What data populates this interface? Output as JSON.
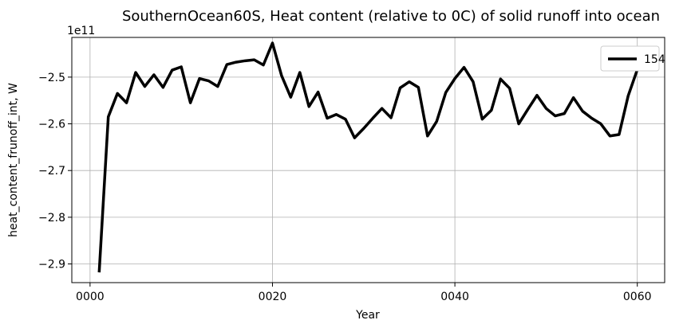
{
  "chart_data": {
    "type": "line",
    "title": "SouthernOcean60S, Heat content (relative to 0C) of solid runoff into ocean",
    "xlabel": "Year",
    "ylabel": "heat_content_frunoff_int, W",
    "y_offset_label": "1e11",
    "xlim": [
      -2,
      63
    ],
    "ylim": [
      -2.94,
      -2.415
    ],
    "x_ticks": [
      0,
      20,
      40,
      60
    ],
    "x_tick_labels": [
      "0000",
      "0020",
      "0040",
      "0060"
    ],
    "y_ticks": [
      -2.9,
      -2.8,
      -2.7,
      -2.6,
      -2.5
    ],
    "y_tick_labels": [
      "−2.9",
      "−2.8",
      "−2.7",
      "−2.6",
      "−2.5"
    ],
    "grid": true,
    "legend_position": "top-right",
    "series": [
      {
        "name": "154",
        "color": "#000000",
        "x": [
          1,
          2,
          3,
          4,
          5,
          6,
          7,
          8,
          9,
          10,
          11,
          12,
          13,
          14,
          15,
          16,
          17,
          18,
          19,
          20,
          21,
          22,
          23,
          24,
          25,
          26,
          27,
          28,
          29,
          30,
          31,
          32,
          33,
          34,
          35,
          36,
          37,
          38,
          39,
          40,
          41,
          42,
          43,
          44,
          45,
          46,
          47,
          48,
          49,
          50,
          51,
          52,
          53,
          54,
          55,
          56,
          57,
          58,
          59,
          60
        ],
        "values": [
          -2.918,
          -2.585,
          -2.535,
          -2.555,
          -2.49,
          -2.52,
          -2.495,
          -2.522,
          -2.485,
          -2.478,
          -2.555,
          -2.503,
          -2.508,
          -2.52,
          -2.473,
          -2.468,
          -2.465,
          -2.463,
          -2.474,
          -2.427,
          -2.497,
          -2.543,
          -2.49,
          -2.563,
          -2.532,
          -2.588,
          -2.58,
          -2.59,
          -2.63,
          -2.61,
          -2.588,
          -2.567,
          -2.587,
          -2.523,
          -2.51,
          -2.522,
          -2.626,
          -2.595,
          -2.533,
          -2.503,
          -2.479,
          -2.51,
          -2.59,
          -2.571,
          -2.504,
          -2.524,
          -2.6,
          -2.569,
          -2.539,
          -2.567,
          -2.583,
          -2.578,
          -2.544,
          -2.573,
          -2.588,
          -2.6,
          -2.626,
          -2.623,
          -2.54,
          -2.484
        ]
      }
    ]
  }
}
